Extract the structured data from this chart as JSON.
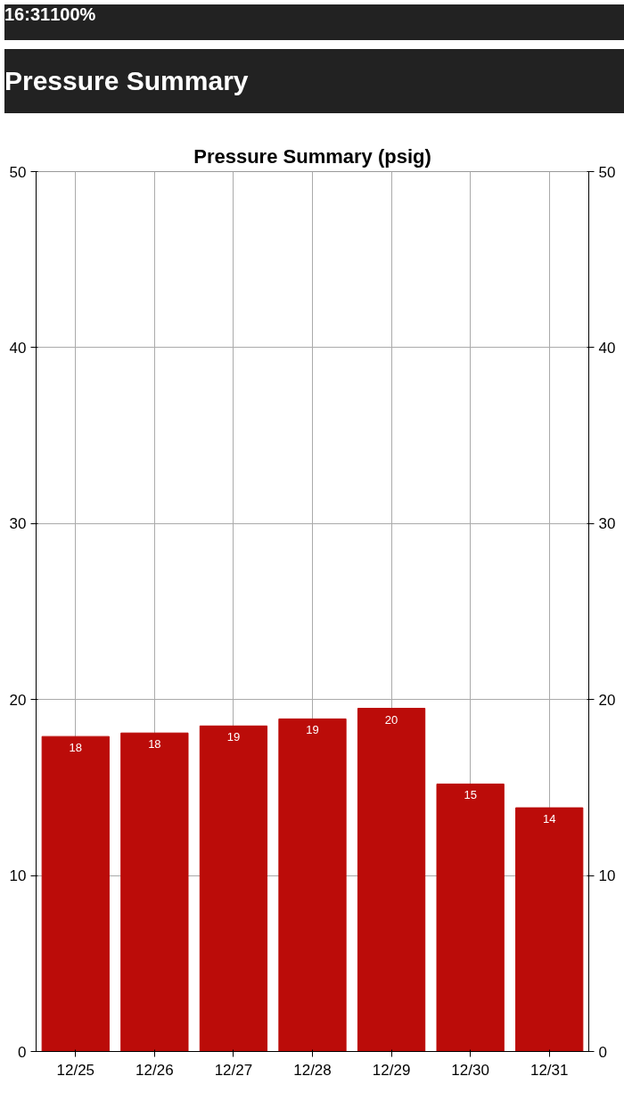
{
  "chart_data": {
    "type": "bar",
    "title": "Pressure Summary",
    "subtitle": "Pressure Summary (psig)",
    "annotations": [
      "16:31",
      "100%"
    ],
    "categories": [
      "12/25",
      "12/26",
      "12/27",
      "12/28",
      "12/29",
      "12/30",
      "12/31"
    ],
    "series": [
      {
        "color": "#bb0c09",
        "values": [
          17.9,
          18.1,
          18.5,
          18.9,
          19.5,
          15.2,
          13.85
        ],
        "value_labels": [
          "18",
          "18",
          "19",
          "19",
          "20",
          "15",
          "14"
        ]
      }
    ],
    "ylim": [
      0,
      50
    ],
    "yticks": [
      0,
      10,
      20,
      30,
      40,
      50
    ],
    "y2lim": [
      0,
      50
    ],
    "y2ticks": [
      0,
      10,
      20,
      30,
      40,
      50
    ],
    "grid": true
  }
}
